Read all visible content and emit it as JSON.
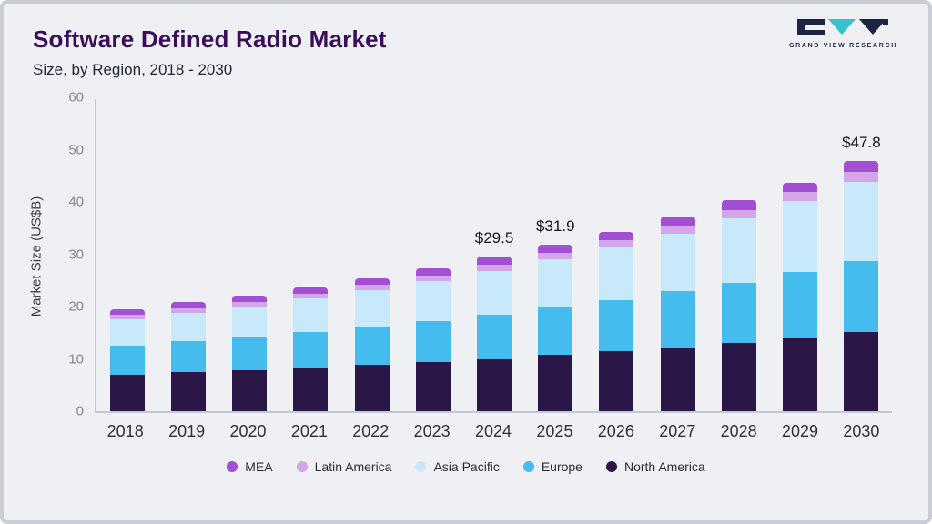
{
  "header": {
    "title": "Software Defined Radio Market",
    "subtitle": "Size, by Region, 2018 - 2030",
    "logo_text": "GRAND VIEW RESEARCH"
  },
  "chart_data": {
    "type": "bar",
    "stacked": true,
    "title": "Software Defined Radio Market Size, by Region, 2018 - 2030",
    "xlabel": "",
    "ylabel": "Market Size (US$B)",
    "ylim": [
      0,
      60
    ],
    "ytick_step": 10,
    "grid": false,
    "legend_position": "bottom",
    "categories": [
      "2018",
      "2019",
      "2020",
      "2021",
      "2022",
      "2023",
      "2024",
      "2025",
      "2026",
      "2027",
      "2028",
      "2029",
      "2030"
    ],
    "series": [
      {
        "name": "North America",
        "color": "#2b1747",
        "values": [
          7.0,
          7.4,
          7.9,
          8.3,
          8.8,
          9.4,
          10.0,
          10.7,
          11.4,
          12.2,
          13.1,
          14.1,
          15.2
        ]
      },
      {
        "name": "Europe",
        "color": "#44bced",
        "values": [
          5.6,
          6.0,
          6.3,
          6.9,
          7.4,
          7.9,
          8.5,
          9.2,
          9.9,
          10.7,
          11.5,
          12.5,
          13.5
        ]
      },
      {
        "name": "Asia Pacific",
        "color": "#c7e9fa",
        "values": [
          5.0,
          5.4,
          5.8,
          6.3,
          6.9,
          7.5,
          8.3,
          9.1,
          10.0,
          11.1,
          12.3,
          13.6,
          15.1
        ]
      },
      {
        "name": "Latin America",
        "color": "#d3a5e9",
        "values": [
          0.8,
          0.9,
          0.9,
          1.0,
          1.0,
          1.1,
          1.2,
          1.3,
          1.4,
          1.5,
          1.6,
          1.7,
          1.9
        ]
      },
      {
        "name": "MEA",
        "color": "#a24fd3",
        "values": [
          1.1,
          1.1,
          1.2,
          1.2,
          1.3,
          1.4,
          1.5,
          1.6,
          1.6,
          1.7,
          1.8,
          1.8,
          2.1
        ]
      }
    ],
    "totals": [
      19.5,
      20.8,
      22.1,
      23.7,
      25.4,
      27.3,
      29.5,
      31.9,
      34.3,
      37.2,
      40.3,
      43.7,
      47.8
    ],
    "legend": [
      "MEA",
      "Latin America",
      "Asia Pacific",
      "Europe",
      "North America"
    ],
    "annotations": [
      {
        "category": "2024",
        "label": "$29.5"
      },
      {
        "category": "2025",
        "label": "$31.9"
      },
      {
        "category": "2030",
        "label": "$47.8"
      }
    ]
  }
}
